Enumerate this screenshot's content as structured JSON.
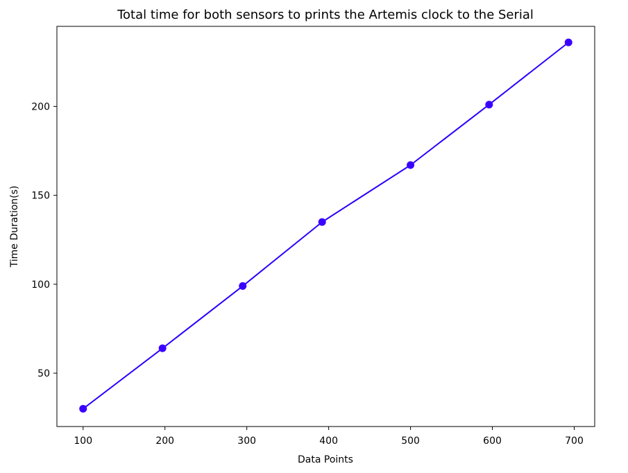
{
  "chart_data": {
    "type": "line",
    "title": "Total time for both sensors to prints the Artemis clock to the Serial",
    "xlabel": "Data Points",
    "ylabel": "Time Duration(s)",
    "x": [
      100,
      197,
      295,
      392,
      500,
      596,
      693
    ],
    "series": [
      {
        "values": [
          30,
          64,
          99,
          135,
          167,
          201,
          236
        ],
        "color": "#2a00ff",
        "marker_color": "#3a00ff"
      }
    ],
    "xlim": [
      68,
      725
    ],
    "ylim": [
      20,
      245
    ],
    "xticks": [
      100,
      200,
      300,
      400,
      500,
      600,
      700
    ],
    "yticks": [
      50,
      100,
      150,
      200
    ],
    "grid": false
  }
}
